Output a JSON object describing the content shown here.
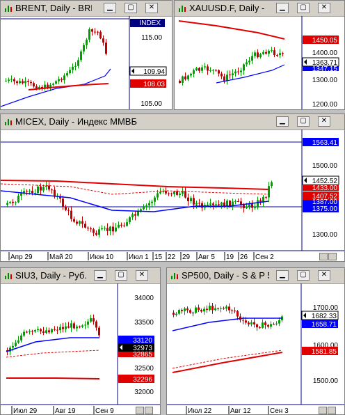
{
  "windows": {
    "brent": {
      "title": "BRENT, Daily - BRE...",
      "index_label": "INDEX",
      "y_ticks": [
        "115.00",
        "110.00",
        "105.00"
      ],
      "price_tags": [
        "109.94",
        "108.03"
      ]
    },
    "gold": {
      "title": "XAUUSD.F, Daily - ...",
      "y_ticks": [
        "1400.00",
        "1300.00",
        "1200.00"
      ],
      "price_tags": [
        "1450.05",
        "1363.71",
        "1347.15"
      ]
    },
    "micex": {
      "title": "MICEX, Daily - Индекс ММВБ",
      "y_ticks": [
        "1500.00",
        "1400.00",
        "1300.00"
      ],
      "price_tags": [
        "1563.41",
        "1452.52",
        "1433.00",
        "1407.52",
        "1387.00",
        "1375.00"
      ],
      "x_labels": [
        "Апр 29",
        "Май 20",
        "Июн 10",
        "Июл 1",
        "15",
        "22",
        "29",
        "Авг 5",
        "19",
        "26",
        "Сен 2"
      ]
    },
    "si": {
      "title": "SIU3, Daily - Руб...",
      "y_ticks": [
        "34000",
        "33500",
        "32500",
        "32000"
      ],
      "price_tags": [
        "33120",
        "32973",
        "32865",
        "32296"
      ],
      "x_labels": [
        "Июл 29",
        "Авг 19",
        "Сен 9"
      ]
    },
    "sp": {
      "title": "SP500, Daily - S & P 5...",
      "y_ticks": [
        "1700.00",
        "1600.00",
        "1500.00"
      ],
      "price_tags": [
        "1682.33",
        "1658.71",
        "1581.85"
      ],
      "x_labels": [
        "Июл 22",
        "Авг 12",
        "Сен 3"
      ]
    }
  },
  "colors": {
    "bull": "#00a000",
    "bear": "#c00000",
    "ma_fast": "#0000ff",
    "ma_slow": "#e00000",
    "line": "#000080"
  }
}
